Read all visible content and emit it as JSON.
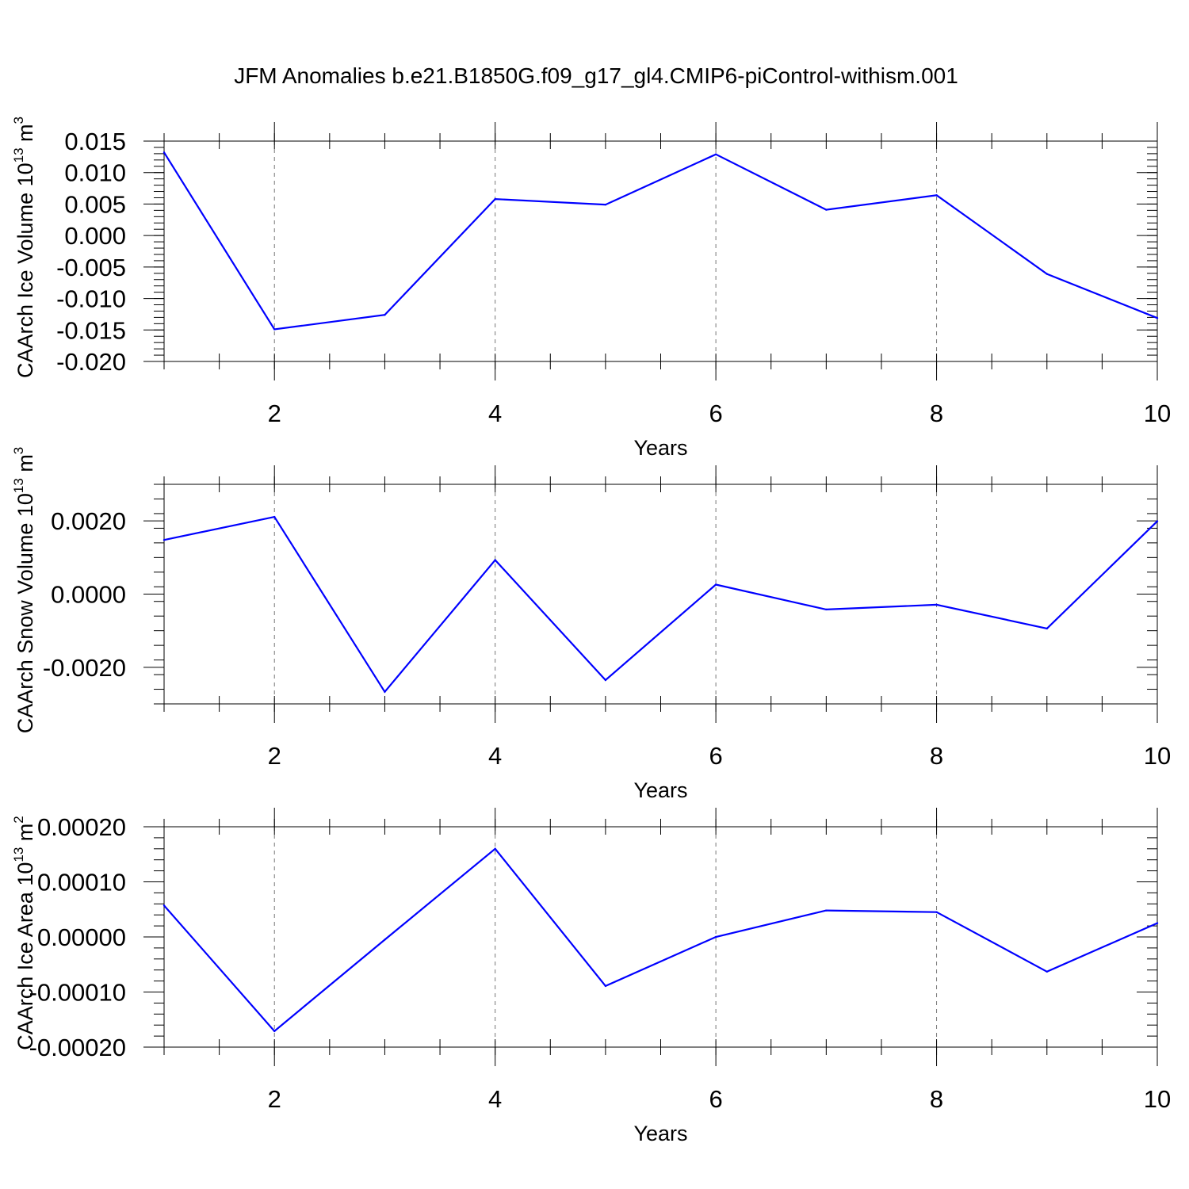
{
  "title": "JFM Anomalies b.e21.B1850G.f09_g17_gl4.CMIP6-piControl-withism.001",
  "colors": {
    "line": "#0000ff",
    "axes": "#000000",
    "grid": "#777777"
  },
  "chart_data": [
    {
      "type": "line",
      "xlabel": "Years",
      "ylabel": "CAArch Ice Volume 10",
      "ylabel_exp": "13",
      "ylabel_unit": " m",
      "ylabel_unit_exp": "3",
      "xlim": [
        1,
        10
      ],
      "ylim": [
        -0.02,
        0.015
      ],
      "xticks": [
        2,
        4,
        6,
        8,
        10
      ],
      "yticks": [
        -0.02,
        -0.015,
        -0.01,
        -0.005,
        0.0,
        0.005,
        0.01,
        0.015
      ],
      "ytick_labels": [
        "-0.020",
        "-0.015",
        "-0.010",
        "-0.005",
        "0.000",
        "0.005",
        "0.010",
        "0.015"
      ],
      "x": [
        1,
        2,
        3,
        4,
        5,
        6,
        7,
        8,
        9,
        10
      ],
      "series": [
        {
          "values": [
            0.0132,
            -0.0149,
            -0.0126,
            0.0058,
            0.0049,
            0.0129,
            0.0041,
            0.0064,
            -0.0061,
            -0.0131
          ]
        }
      ]
    },
    {
      "type": "line",
      "xlabel": "Years",
      "ylabel": "CAArch Snow Volume 10",
      "ylabel_exp": "13",
      "ylabel_unit": " m",
      "ylabel_unit_exp": "3",
      "xlim": [
        1,
        10
      ],
      "ylim": [
        -0.003,
        0.003
      ],
      "xticks": [
        2,
        4,
        6,
        8,
        10
      ],
      "yticks": [
        -0.002,
        0.0,
        0.002
      ],
      "ytick_labels": [
        "-0.0020",
        "0.0000",
        "0.0020"
      ],
      "x": [
        1,
        2,
        3,
        4,
        5,
        6,
        7,
        8,
        9,
        10
      ],
      "series": [
        {
          "values": [
            0.00148,
            0.00211,
            -0.00267,
            0.00093,
            -0.00235,
            0.00026,
            -0.00042,
            -0.00029,
            -0.00094,
            0.00199
          ]
        }
      ]
    },
    {
      "type": "line",
      "xlabel": "Years",
      "ylabel": "CAArch Ice Area 10",
      "ylabel_exp": "13",
      "ylabel_unit": " m",
      "ylabel_unit_exp": "2",
      "xlim": [
        1,
        10
      ],
      "ylim": [
        -0.0002,
        0.0002
      ],
      "xticks": [
        2,
        4,
        6,
        8,
        10
      ],
      "yticks": [
        -0.0002,
        -0.0001,
        0.0,
        0.0001,
        0.0002
      ],
      "ytick_labels": [
        "-0.00020",
        "-0.00010",
        "0.00000",
        "0.00010",
        "0.00020"
      ],
      "x": [
        1,
        2,
        3,
        4,
        5,
        6,
        7,
        8,
        9,
        10
      ],
      "series": [
        {
          "values": [
            5.7e-05,
            -0.000171,
            -5e-06,
            0.00016,
            -8.9e-05,
            0.0,
            4.8e-05,
            4.5e-05,
            -6.3e-05,
            2.5e-05
          ]
        }
      ]
    }
  ]
}
